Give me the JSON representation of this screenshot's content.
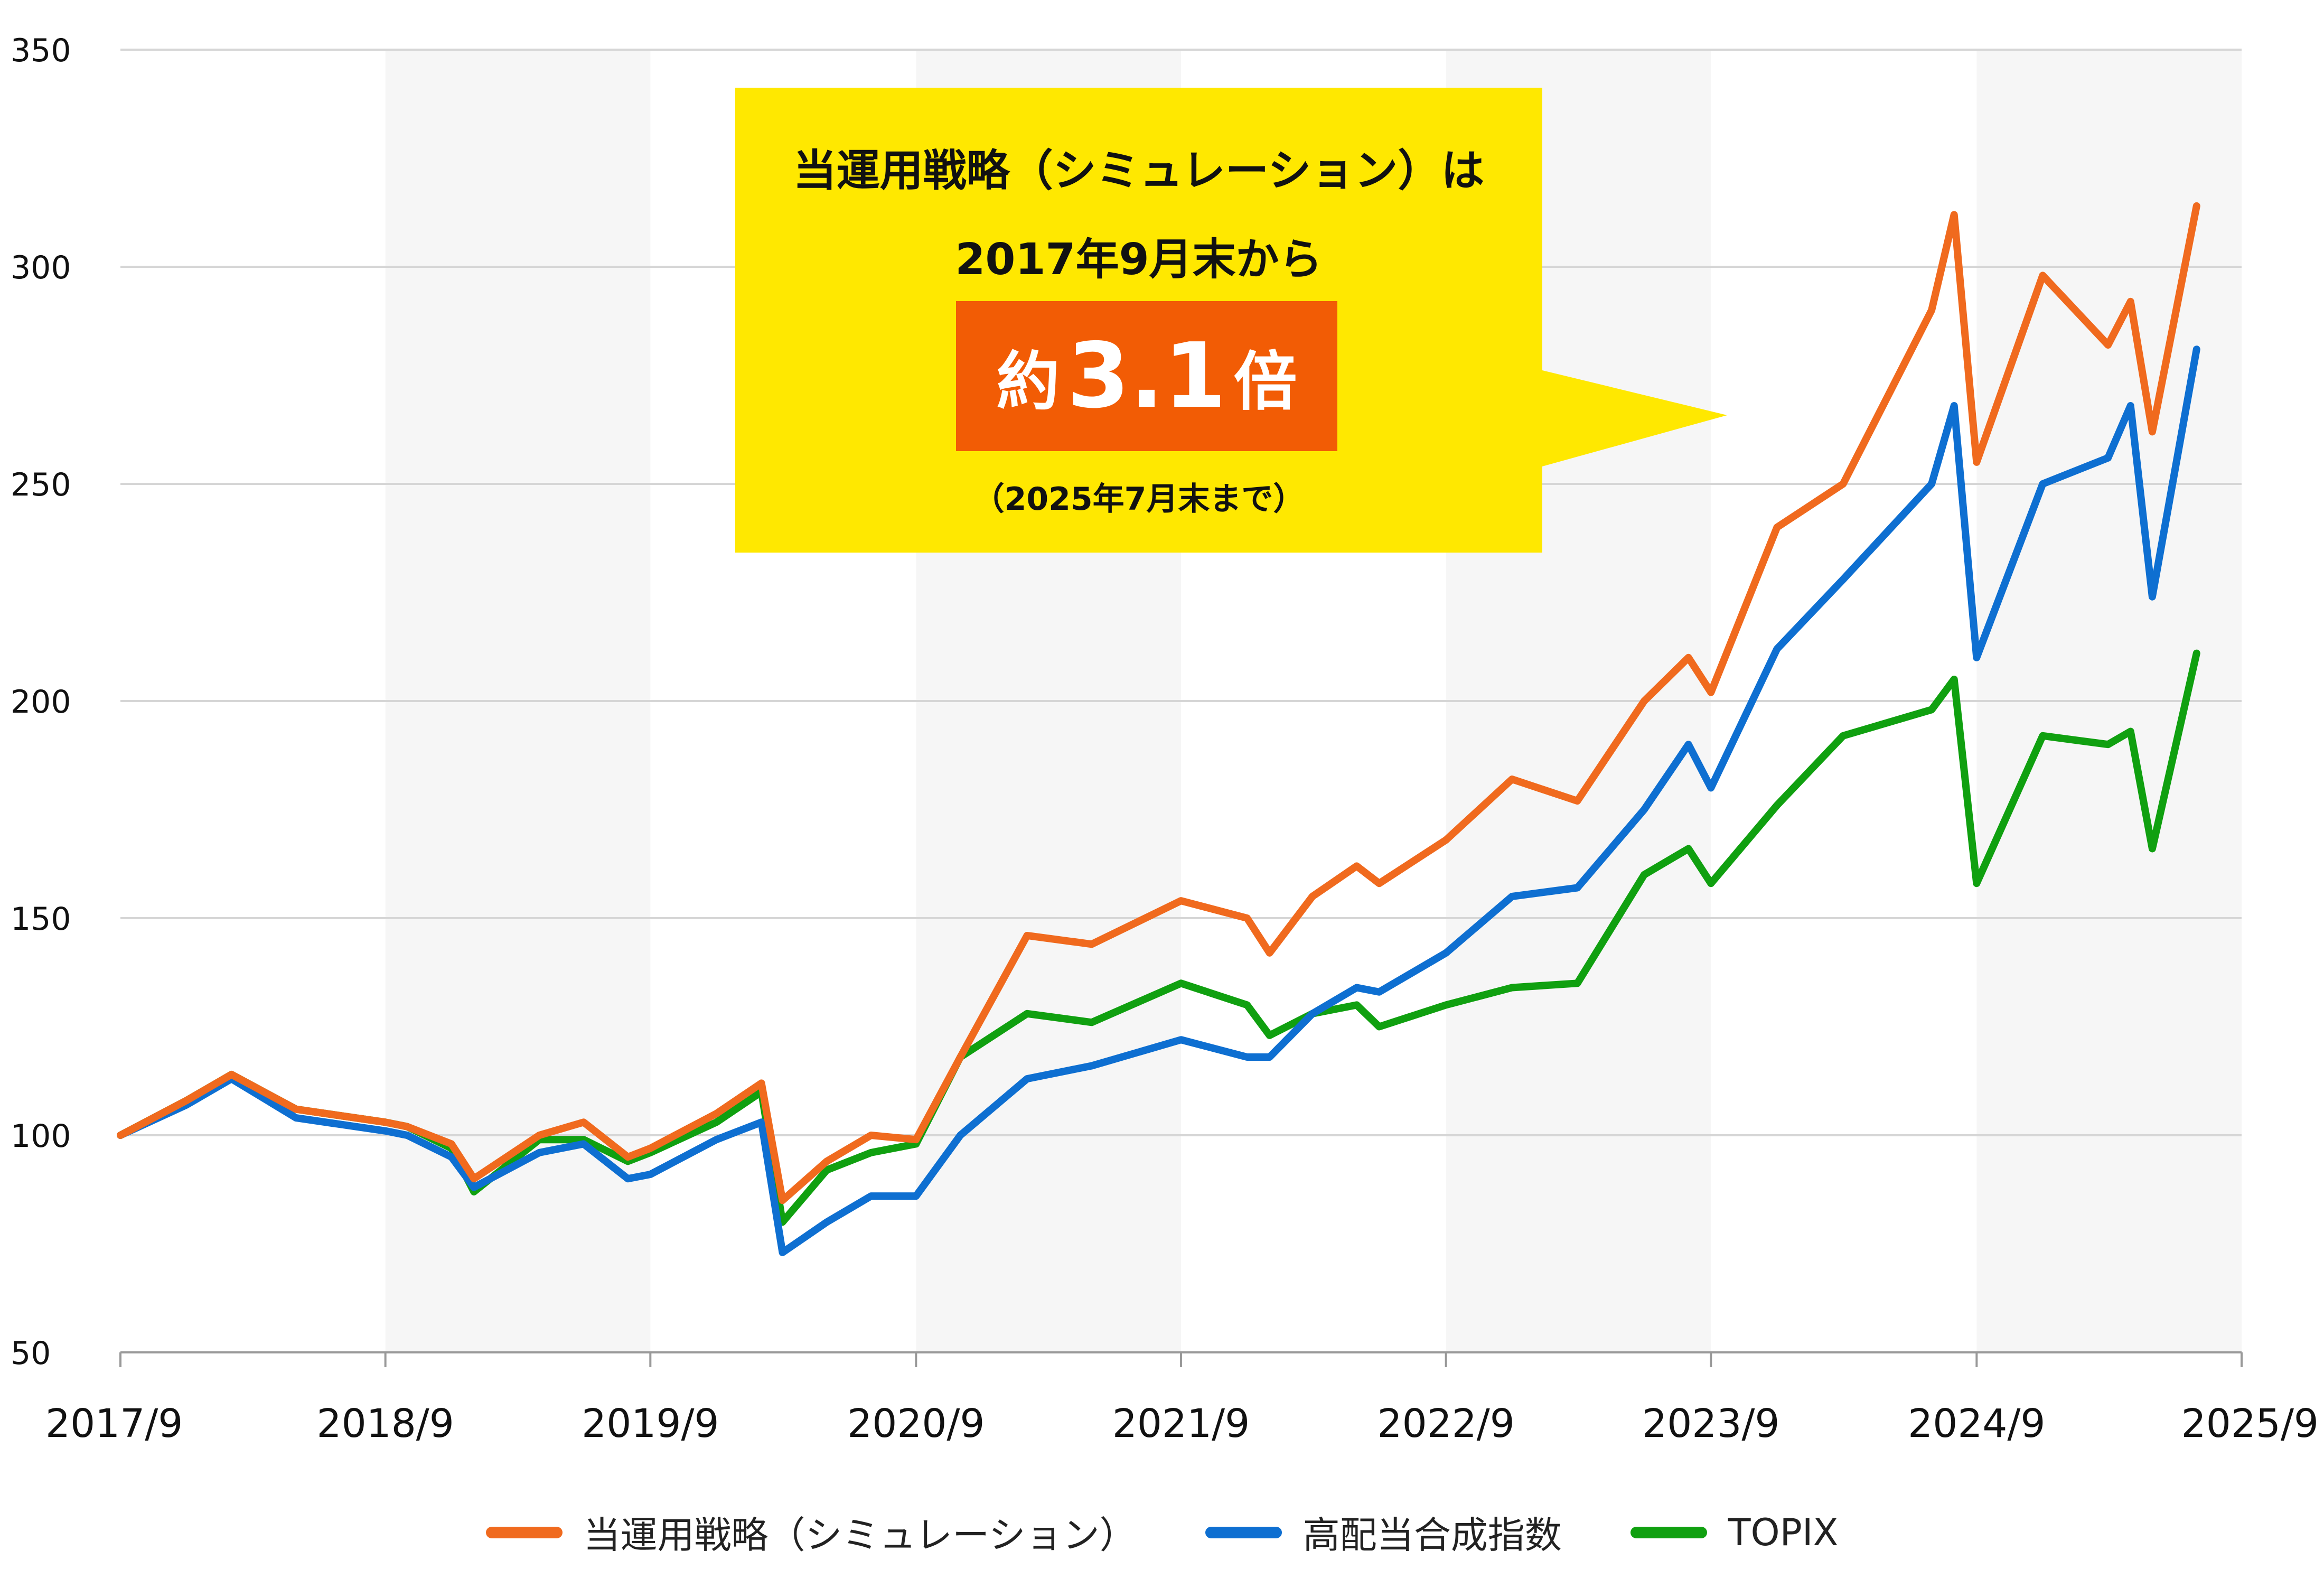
{
  "callout": {
    "line1": "当運用戦略（シミュレーション）は",
    "line2": "2017年9月末から",
    "badge_prefix": "約",
    "badge_value": "3.1",
    "badge_suffix": "倍",
    "note": "（2025年7月末まで）",
    "bg_color": "#FFE800",
    "badge_color": "#F25C05"
  },
  "chart_data": {
    "type": "line",
    "x_ticks": [
      "2017/9",
      "2018/9",
      "2019/9",
      "2020/9",
      "2021/9",
      "2022/9",
      "2023/9",
      "2024/9",
      "2025/9"
    ],
    "y_ticks": [
      50,
      100,
      150,
      200,
      250,
      300,
      350
    ],
    "ylim": [
      50,
      350
    ],
    "xlim": [
      "2017-09",
      "2025-09"
    ],
    "grid": true,
    "legend_position": "bottom",
    "x": [
      "2017-09",
      "2017-12",
      "2018-02",
      "2018-05",
      "2018-09",
      "2018-10",
      "2018-12",
      "2019-01",
      "2019-04",
      "2019-06",
      "2019-08",
      "2019-09",
      "2019-12",
      "2020-02",
      "2020-03",
      "2020-05",
      "2020-07",
      "2020-09",
      "2020-11",
      "2021-02",
      "2021-05",
      "2021-09",
      "2021-12",
      "2022-01",
      "2022-03",
      "2022-05",
      "2022-06",
      "2022-09",
      "2022-12",
      "2023-03",
      "2023-06",
      "2023-08",
      "2023-09",
      "2023-12",
      "2024-03",
      "2024-07",
      "2024-08",
      "2024-09",
      "2024-12",
      "2025-03",
      "2025-04",
      "2025-05",
      "2025-07"
    ],
    "series": [
      {
        "name": "当運用戦略（シミュレーション）",
        "color": "#F06A1E",
        "values": [
          100,
          108,
          114,
          106,
          103,
          102,
          98,
          90,
          100,
          103,
          95,
          97,
          105,
          112,
          85,
          94,
          100,
          99,
          118,
          146,
          144,
          154,
          150,
          142,
          155,
          162,
          158,
          168,
          182,
          177,
          200,
          210,
          202,
          240,
          250,
          290,
          312,
          255,
          298,
          282,
          292,
          262,
          314
        ]
      },
      {
        "name": "高配当合成指数",
        "color": "#0E6FD1",
        "values": [
          100,
          107,
          113,
          104,
          101,
          100,
          95,
          88,
          96,
          98,
          90,
          91,
          99,
          103,
          73,
          80,
          86,
          86,
          100,
          113,
          116,
          122,
          118,
          118,
          128,
          134,
          133,
          142,
          155,
          157,
          175,
          190,
          180,
          212,
          228,
          250,
          268,
          210,
          250,
          256,
          268,
          224,
          281
        ]
      },
      {
        "name": "TOPIX",
        "color": "#10A010",
        "values": [
          100,
          108,
          114,
          106,
          103,
          102,
          97,
          87,
          99,
          99,
          94,
          96,
          103,
          110,
          80,
          92,
          96,
          98,
          118,
          128,
          126,
          135,
          130,
          123,
          128,
          130,
          125,
          130,
          134,
          135,
          160,
          166,
          158,
          176,
          192,
          198,
          205,
          158,
          192,
          190,
          193,
          166,
          211
        ]
      }
    ]
  }
}
